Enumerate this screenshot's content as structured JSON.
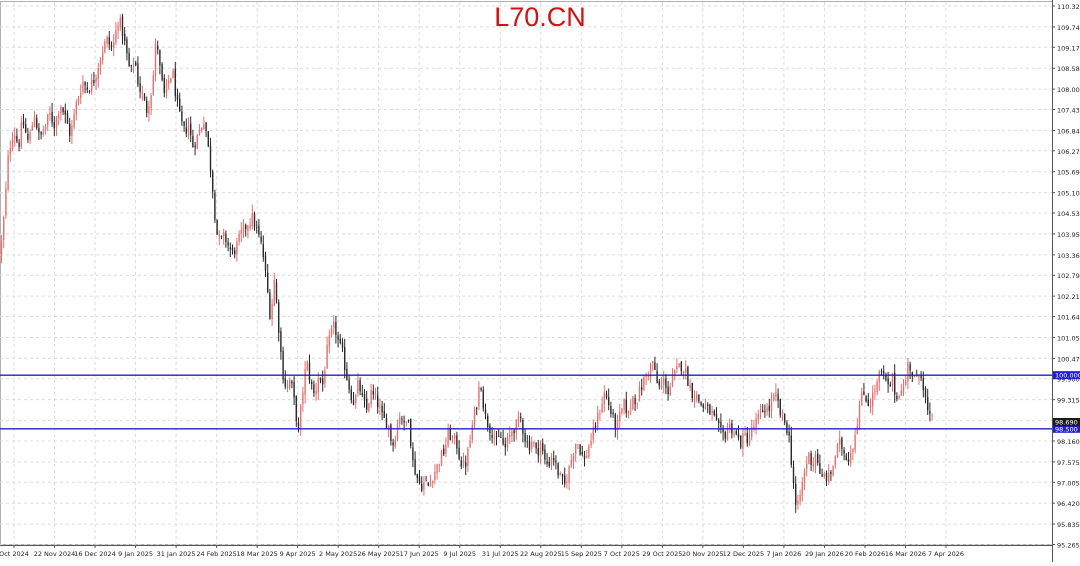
{
  "chart_data": {
    "type": "candlestick",
    "title": "L70.CN",
    "ylim": [
      95.25,
      110.325
    ],
    "y_ticks": [
      "110.325",
      "109.740",
      "109.170",
      "108.585",
      "108.000",
      "107.430",
      "106.845",
      "106.275",
      "105.690",
      "105.105",
      "104.535",
      "103.950",
      "103.365",
      "102.795",
      "102.210",
      "101.640",
      "101.055",
      "100.470",
      "99.900",
      "99.315",
      "98.730",
      "98.160",
      "97.575",
      "97.005",
      "96.420",
      "95.835",
      "95.265"
    ],
    "x_labels": [
      "Oct 2024",
      "22 Nov 2024",
      "16 Dec 2024",
      "9 Jan 2025",
      "31 Jan 2025",
      "24 Feb 2025",
      "18 Mar 2025",
      "9 Apr 2025",
      "2 May 2025",
      "26 May 2025",
      "17 Jun 2025",
      "9 Jul 2025",
      "31 Jul 2025",
      "22 Aug 2025",
      "15 Sep 2025",
      "7 Oct 2025",
      "29 Oct 2025",
      "20 Nov 2025",
      "12 Dec 2025",
      "7 Jan 2026",
      "29 Jan 2026",
      "20 Feb 2026",
      "16 Mar 2026",
      "7 Apr 2026"
    ],
    "horizontal_lines": [
      {
        "value": 100.0,
        "label": "100.000"
      },
      {
        "value": 98.5,
        "label": "98.500"
      }
    ],
    "last_price": {
      "value": 98.69,
      "label": "98.690"
    },
    "close_path": [
      [
        0,
        103.4
      ],
      [
        4,
        104.6
      ],
      [
        8,
        106.2
      ],
      [
        13,
        106.9
      ],
      [
        18,
        106.4
      ],
      [
        22,
        107.1
      ],
      [
        28,
        106.5
      ],
      [
        34,
        107.3
      ],
      [
        39,
        106.6
      ],
      [
        44,
        106.9
      ],
      [
        49,
        107.3
      ],
      [
        54,
        107.0
      ],
      [
        60,
        107.6
      ],
      [
        65,
        107.2
      ],
      [
        70,
        106.7
      ],
      [
        76,
        107.6
      ],
      [
        82,
        108.2
      ],
      [
        88,
        108.0
      ],
      [
        94,
        108.3
      ],
      [
        100,
        108.9
      ],
      [
        106,
        109.4
      ],
      [
        112,
        109.1
      ],
      [
        118,
        110.0
      ],
      [
        122,
        109.6
      ],
      [
        126,
        109.0
      ],
      [
        130,
        108.4
      ],
      [
        134,
        108.9
      ],
      [
        138,
        108.1
      ],
      [
        142,
        107.8
      ],
      [
        146,
        107.4
      ],
      [
        152,
        108.1
      ],
      [
        156,
        109.5
      ],
      [
        160,
        108.4
      ],
      [
        164,
        107.8
      ],
      [
        168,
        108.2
      ],
      [
        172,
        108.5
      ],
      [
        176,
        107.7
      ],
      [
        180,
        107.1
      ],
      [
        184,
        106.8
      ],
      [
        188,
        107.0
      ],
      [
        192,
        106.4
      ],
      [
        196,
        106.6
      ],
      [
        200,
        106.9
      ],
      [
        204,
        107.2
      ],
      [
        208,
        106.3
      ],
      [
        212,
        105.3
      ],
      [
        216,
        104.0
      ],
      [
        220,
        103.7
      ],
      [
        224,
        103.9
      ],
      [
        228,
        103.6
      ],
      [
        232,
        103.4
      ],
      [
        236,
        103.6
      ],
      [
        240,
        103.9
      ],
      [
        246,
        104.2
      ],
      [
        252,
        104.4
      ],
      [
        258,
        103.9
      ],
      [
        262,
        103.5
      ],
      [
        266,
        102.6
      ],
      [
        270,
        101.6
      ],
      [
        274,
        102.7
      ],
      [
        278,
        101.4
      ],
      [
        282,
        100.1
      ],
      [
        286,
        99.6
      ],
      [
        290,
        99.9
      ],
      [
        294,
        99.2
      ],
      [
        298,
        98.4
      ],
      [
        302,
        99.5
      ],
      [
        306,
        100.4
      ],
      [
        310,
        99.8
      ],
      [
        314,
        99.4
      ],
      [
        318,
        100.0
      ],
      [
        322,
        99.7
      ],
      [
        326,
        100.6
      ],
      [
        330,
        101.1
      ],
      [
        334,
        101.4
      ],
      [
        338,
        100.9
      ],
      [
        342,
        100.6
      ],
      [
        346,
        100.0
      ],
      [
        350,
        99.5
      ],
      [
        354,
        99.2
      ],
      [
        358,
        99.8
      ],
      [
        362,
        99.3
      ],
      [
        366,
        99.0
      ],
      [
        370,
        99.5
      ],
      [
        376,
        99.3
      ],
      [
        382,
        98.8
      ],
      [
        388,
        98.6
      ],
      [
        392,
        98.0
      ],
      [
        396,
        98.5
      ],
      [
        400,
        99.0
      ],
      [
        404,
        98.5
      ],
      [
        408,
        98.9
      ],
      [
        412,
        97.6
      ],
      [
        416,
        97.2
      ],
      [
        420,
        96.9
      ],
      [
        424,
        97.0
      ],
      [
        428,
        96.9
      ],
      [
        432,
        97.2
      ],
      [
        436,
        97.4
      ],
      [
        440,
        97.7
      ],
      [
        444,
        97.9
      ],
      [
        448,
        98.4
      ],
      [
        452,
        98.2
      ],
      [
        456,
        98.1
      ],
      [
        460,
        97.6
      ],
      [
        464,
        97.4
      ],
      [
        468,
        97.9
      ],
      [
        472,
        98.6
      ],
      [
        476,
        99.2
      ],
      [
        480,
        99.9
      ],
      [
        484,
        98.9
      ],
      [
        488,
        98.6
      ],
      [
        492,
        98.4
      ],
      [
        496,
        98.1
      ],
      [
        500,
        98.3
      ],
      [
        504,
        97.9
      ],
      [
        508,
        98.2
      ],
      [
        512,
        98.5
      ],
      [
        516,
        98.6
      ],
      [
        520,
        98.8
      ],
      [
        524,
        98.3
      ],
      [
        528,
        98.0
      ],
      [
        532,
        98.2
      ],
      [
        536,
        97.8
      ],
      [
        540,
        98.1
      ],
      [
        544,
        97.6
      ],
      [
        548,
        97.5
      ],
      [
        552,
        97.8
      ],
      [
        556,
        97.4
      ],
      [
        560,
        97.1
      ],
      [
        564,
        96.9
      ],
      [
        568,
        97.3
      ],
      [
        572,
        97.8
      ],
      [
        576,
        98.2
      ],
      [
        580,
        97.9
      ],
      [
        584,
        97.6
      ],
      [
        588,
        98.0
      ],
      [
        592,
        98.3
      ],
      [
        596,
        98.7
      ],
      [
        600,
        99.1
      ],
      [
        604,
        99.5
      ],
      [
        608,
        99.2
      ],
      [
        612,
        98.8
      ],
      [
        616,
        98.5
      ],
      [
        620,
        98.9
      ],
      [
        624,
        99.2
      ],
      [
        628,
        98.9
      ],
      [
        632,
        99.4
      ],
      [
        636,
        99.3
      ],
      [
        640,
        99.6
      ],
      [
        644,
        99.9
      ],
      [
        648,
        100.1
      ],
      [
        652,
        100.4
      ],
      [
        656,
        99.8
      ],
      [
        660,
        99.6
      ],
      [
        664,
        99.9
      ],
      [
        668,
        99.5
      ],
      [
        672,
        99.9
      ],
      [
        676,
        100.1
      ],
      [
        680,
        100.3
      ],
      [
        684,
        100.2
      ],
      [
        688,
        99.8
      ],
      [
        692,
        99.5
      ],
      [
        696,
        99.4
      ],
      [
        700,
        99.2
      ],
      [
        704,
        99.1
      ],
      [
        708,
        99.0
      ],
      [
        712,
        98.9
      ],
      [
        716,
        98.6
      ],
      [
        720,
        98.4
      ],
      [
        724,
        98.3
      ],
      [
        728,
        98.6
      ],
      [
        732,
        98.5
      ],
      [
        736,
        98.3
      ],
      [
        740,
        98.1
      ],
      [
        744,
        98.3
      ],
      [
        748,
        98.2
      ],
      [
        752,
        98.5
      ],
      [
        756,
        98.7
      ],
      [
        760,
        98.9
      ],
      [
        764,
        99.1
      ],
      [
        768,
        99.0
      ],
      [
        772,
        99.3
      ],
      [
        776,
        99.4
      ],
      [
        780,
        98.9
      ],
      [
        784,
        98.7
      ],
      [
        788,
        98.4
      ],
      [
        792,
        97.3
      ],
      [
        796,
        96.1
      ],
      [
        800,
        96.7
      ],
      [
        804,
        97.3
      ],
      [
        808,
        97.8
      ],
      [
        812,
        97.5
      ],
      [
        816,
        97.9
      ],
      [
        820,
        97.0
      ],
      [
        824,
        97.2
      ],
      [
        828,
        97.1
      ],
      [
        832,
        97.4
      ],
      [
        836,
        97.9
      ],
      [
        840,
        98.1
      ],
      [
        844,
        97.8
      ],
      [
        848,
        97.7
      ],
      [
        852,
        98.0
      ],
      [
        856,
        98.6
      ],
      [
        860,
        99.3
      ],
      [
        864,
        99.5
      ],
      [
        868,
        99.2
      ],
      [
        872,
        99.4
      ],
      [
        876,
        99.7
      ],
      [
        880,
        100.1
      ],
      [
        884,
        99.9
      ],
      [
        888,
        99.6
      ],
      [
        892,
        99.9
      ],
      [
        896,
        99.3
      ],
      [
        900,
        99.7
      ],
      [
        904,
        99.6
      ],
      [
        908,
        100.4
      ],
      [
        912,
        100.0
      ],
      [
        916,
        99.8
      ],
      [
        920,
        100.2
      ],
      [
        924,
        99.5
      ],
      [
        928,
        98.8
      ],
      [
        932,
        98.7
      ]
    ]
  }
}
